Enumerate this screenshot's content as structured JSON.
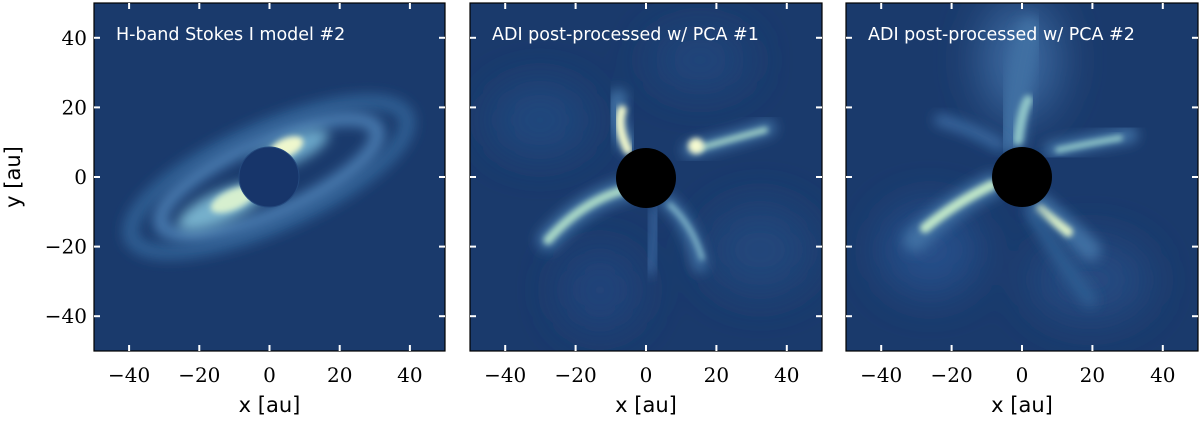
{
  "panels": [
    {
      "title": "H-band Stokes I model #2",
      "xlabel": "x [au]",
      "ylabel": "y [au]"
    },
    {
      "title": "ADI post-processed w/ PCA #1",
      "xlabel": "x [au]",
      "ylabel": ""
    },
    {
      "title": "ADI post-processed w/ PCA #2",
      "xlabel": "x [au]",
      "ylabel": ""
    }
  ],
  "axes": {
    "x_range": [
      -50,
      50
    ],
    "y_range": [
      -50,
      50
    ],
    "x_ticks": [
      -40,
      -20,
      0,
      20,
      40
    ],
    "y_ticks": [
      -40,
      -20,
      0,
      20,
      40
    ],
    "x_tick_labels": [
      "−40",
      "−20",
      "0",
      "20",
      "40"
    ],
    "y_tick_labels": [
      "−40",
      "−20",
      "0",
      "20",
      "40"
    ]
  },
  "colors": {
    "background": "#1a3a6c",
    "mid": "#3f6fa3",
    "bright": "#fcfdd0",
    "mask": "#000000",
    "title_text": "#ffffff"
  }
}
